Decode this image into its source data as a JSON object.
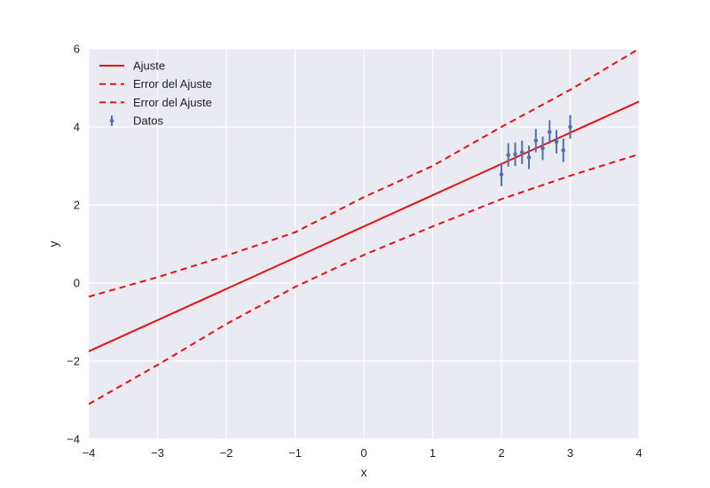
{
  "chart_data": {
    "type": "line",
    "xlabel": "x",
    "ylabel": "y",
    "xlim": [
      -4,
      4
    ],
    "ylim": [
      -4,
      6
    ],
    "xticks": [
      -4,
      -3,
      -2,
      -1,
      0,
      1,
      2,
      3,
      4
    ],
    "yticks": [
      -4,
      -2,
      0,
      2,
      4,
      6
    ],
    "xtick_labels": [
      "−4",
      "−3",
      "−2",
      "−1",
      "0",
      "1",
      "2",
      "3",
      "4"
    ],
    "ytick_labels": [
      "−4",
      "−2",
      "0",
      "2",
      "4",
      "6"
    ],
    "grid": true,
    "legend_position": "top-left",
    "colors": {
      "background": "#EAEAF2",
      "grid": "#FFFFFF",
      "fit": "#E8100F",
      "data": "#4C72B0"
    },
    "series": [
      {
        "name": "Ajuste",
        "style": "solid",
        "x": [
          -4,
          4
        ],
        "y": [
          -1.75,
          4.65
        ]
      },
      {
        "name": "Error del Ajuste",
        "style": "dashed",
        "x": [
          -4,
          -3,
          -2,
          -1,
          0,
          1,
          2,
          3,
          4
        ],
        "y": [
          -0.35,
          0.15,
          0.7,
          1.3,
          2.2,
          3.0,
          4.0,
          4.95,
          6.0
        ]
      },
      {
        "name": "Error del Ajuste",
        "style": "dashed",
        "x": [
          -4,
          -3,
          -2,
          -1,
          0,
          1,
          2,
          3,
          4
        ],
        "y": [
          -3.1,
          -2.1,
          -1.05,
          -0.1,
          0.72,
          1.45,
          2.15,
          2.75,
          3.3
        ]
      },
      {
        "name": "Datos",
        "style": "errorbar",
        "x": [
          2.0,
          2.1,
          2.2,
          2.3,
          2.4,
          2.5,
          2.6,
          2.7,
          2.8,
          2.9,
          3.0
        ],
        "y": [
          2.78,
          3.28,
          3.3,
          3.35,
          3.22,
          3.65,
          3.45,
          3.87,
          3.62,
          3.4,
          4.0
        ],
        "yerr": [
          0.3,
          0.3,
          0.3,
          0.3,
          0.3,
          0.3,
          0.3,
          0.3,
          0.3,
          0.3,
          0.3
        ]
      }
    ]
  }
}
